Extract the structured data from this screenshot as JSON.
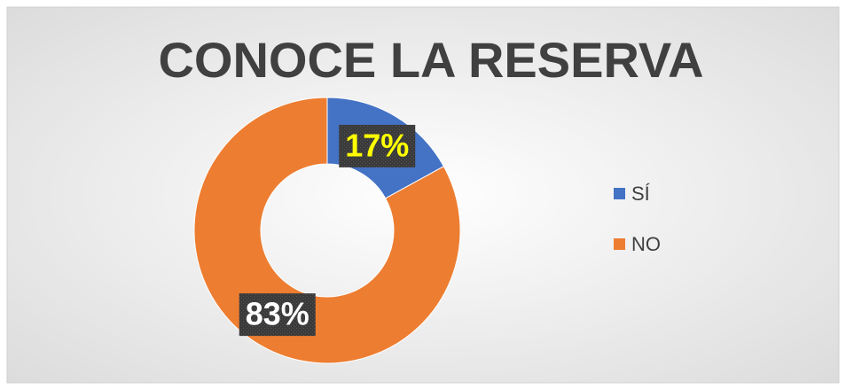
{
  "chart_data": {
    "type": "donut",
    "title": "CONOCE LA RESERVA",
    "categories": [
      "SÍ",
      "NO"
    ],
    "values": [
      17,
      83
    ],
    "value_labels": [
      "17%",
      "83%"
    ],
    "colors": [
      "#4472c4",
      "#ed7d31"
    ],
    "label_colors": [
      "#ffff00",
      "#ffffff"
    ],
    "legend": "right"
  }
}
